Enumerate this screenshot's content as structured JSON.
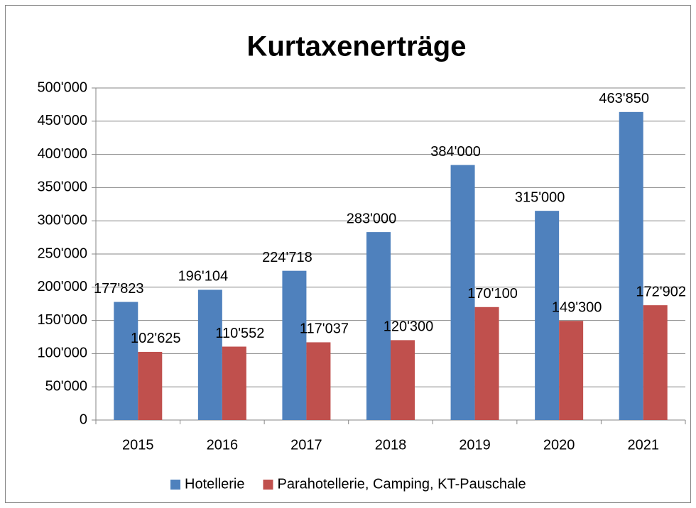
{
  "chart_data": {
    "type": "bar",
    "title": "Kurtaxenerträge",
    "categories": [
      "2015",
      "2016",
      "2017",
      "2018",
      "2019",
      "2020",
      "2021"
    ],
    "series": [
      {
        "name": "Hotellerie",
        "color": "#4f81bd",
        "values": [
          177823,
          196104,
          224718,
          283000,
          384000,
          315000,
          463850
        ],
        "value_labels": [
          "177'823",
          "196'104",
          "224'718",
          "283'000",
          "384'000",
          "315'000",
          "463'850"
        ]
      },
      {
        "name": "Parahotellerie, Camping, KT-Pauschale",
        "color": "#c0504d",
        "values": [
          102625,
          110552,
          117037,
          120300,
          170100,
          149300,
          172902
        ],
        "value_labels": [
          "102'625",
          "110'552",
          "117'037",
          "120'300",
          "170'100",
          "149'300",
          "172'902"
        ]
      }
    ],
    "ylim": [
      0,
      500000
    ],
    "yticks": [
      0,
      {
        "value": 50000,
        "label": "50'000"
      },
      {
        "value": 100000,
        "label": "100'000"
      },
      {
        "value": 150000,
        "label": "150'000"
      },
      {
        "value": 200000,
        "label": "200'000"
      },
      {
        "value": 250000,
        "label": "250'000"
      },
      {
        "value": 300000,
        "label": "300'000"
      },
      {
        "value": 350000,
        "label": "350'000"
      },
      {
        "value": 400000,
        "label": "400'000"
      },
      {
        "value": 450000,
        "label": "450'000"
      },
      {
        "value": 500000,
        "label": "500'000"
      }
    ],
    "grid": true,
    "legend": "bottom"
  }
}
